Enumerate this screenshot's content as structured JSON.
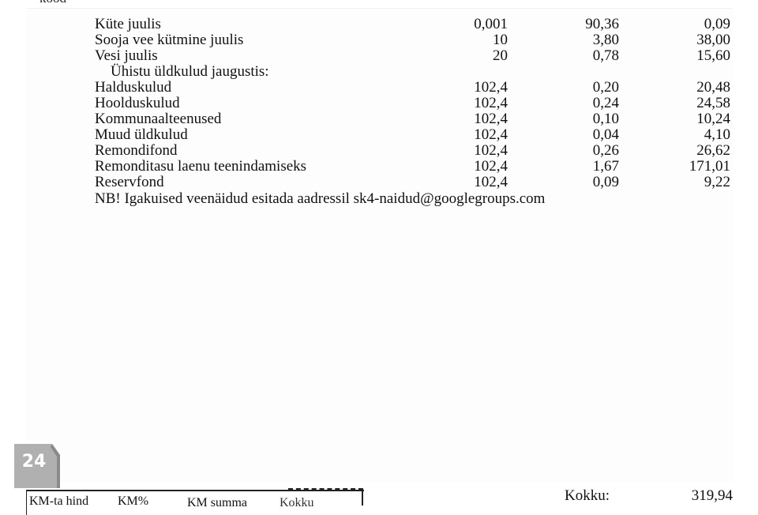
{
  "header_fragment": "kood",
  "rows": [
    {
      "label": "Küte juulis",
      "qty": "0,001",
      "price": "90,36",
      "sum": "0,09"
    },
    {
      "label": "Sooja vee kütmine juulis",
      "qty": "10",
      "price": "3,80",
      "sum": "38,00"
    },
    {
      "label": "Vesi juulis",
      "qty": "20",
      "price": "0,78",
      "sum": "15,60"
    },
    {
      "label": "Ühistu üldkulud jaugustis:",
      "qty": "",
      "price": "",
      "sum": ""
    },
    {
      "label": "Halduskulud",
      "qty": "102,4",
      "price": "0,20",
      "sum": "20,48"
    },
    {
      "label": "Hoolduskulud",
      "qty": "102,4",
      "price": "0,24",
      "sum": "24,58"
    },
    {
      "label": "Kommunaalteenused",
      "qty": "102,4",
      "price": "0,10",
      "sum": "10,24"
    },
    {
      "label": "Muud üldkulud",
      "qty": "102,4",
      "price": "0,04",
      "sum": "4,10"
    },
    {
      "label": "Remondifond",
      "qty": "102,4",
      "price": "0,26",
      "sum": "26,62"
    },
    {
      "label": "Remonditasu laenu teenindamiseks",
      "qty": "102,4",
      "price": "1,67",
      "sum": "171,01"
    },
    {
      "label": "Reservfond",
      "qty": "102,4",
      "price": "0,09",
      "sum": "9,22"
    }
  ],
  "note": "NB! Igakuised veenäidud esitada aadressil  sk4-naidud@googlegroups.com",
  "page_badge": "24",
  "badge_color": "#b0b0b0",
  "vat_box": {
    "km_ta_hind": "KM-ta hind",
    "km_percent": "KM%",
    "km_summa": "KM summa",
    "kokku": "Kokku"
  },
  "total": {
    "label": "Kokku:",
    "value": "319,94"
  }
}
